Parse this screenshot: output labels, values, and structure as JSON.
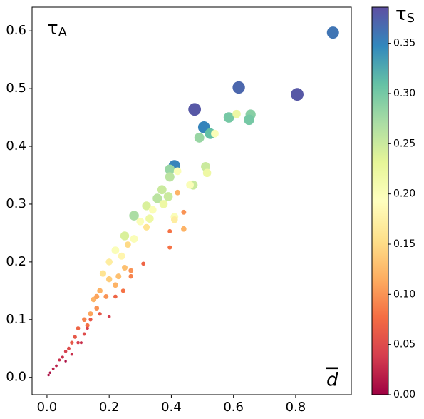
{
  "chart_data": {
    "type": "scatter",
    "annotation": {
      "text": "τ",
      "subscript": "A"
    },
    "x_label": "d",
    "colorbar_label": {
      "text": "τ",
      "subscript": "S"
    },
    "colormap": "Spectral",
    "x": [
      0.92,
      0.617,
      0.805,
      0.475,
      0.505,
      0.525,
      0.49,
      0.585,
      0.655,
      0.65,
      0.61,
      0.54,
      0.41,
      0.395,
      0.395,
      0.42,
      0.51,
      0.515,
      0.47,
      0.46,
      0.42,
      0.37,
      0.355,
      0.39,
      0.375,
      0.32,
      0.34,
      0.28,
      0.41,
      0.41,
      0.44,
      0.44,
      0.395,
      0.395,
      0.3,
      0.32,
      0.33,
      0.25,
      0.28,
      0.26,
      0.22,
      0.24,
      0.2,
      0.25,
      0.27,
      0.31,
      0.27,
      0.23,
      0.18,
      0.2,
      0.22,
      0.245,
      0.17,
      0.19,
      0.22,
      0.15,
      0.16,
      0.17,
      0.14,
      0.2,
      0.12,
      0.13,
      0.1,
      0.12,
      0.09,
      0.08,
      0.1,
      0.07,
      0.06,
      0.08,
      0.05,
      0.04,
      0.03,
      0.02,
      0.01,
      0.005,
      0.06,
      0.11,
      0.13,
      0.14,
      0.16
    ],
    "y": [
      0.597,
      0.502,
      0.49,
      0.464,
      0.433,
      0.422,
      0.415,
      0.45,
      0.455,
      0.446,
      0.456,
      0.422,
      0.366,
      0.36,
      0.347,
      0.357,
      0.365,
      0.354,
      0.333,
      0.333,
      0.32,
      0.325,
      0.31,
      0.313,
      0.3,
      0.297,
      0.29,
      0.28,
      0.278,
      0.273,
      0.286,
      0.257,
      0.253,
      0.225,
      0.27,
      0.26,
      0.275,
      0.245,
      0.24,
      0.23,
      0.22,
      0.21,
      0.2,
      0.19,
      0.185,
      0.197,
      0.175,
      0.175,
      0.18,
      0.17,
      0.16,
      0.15,
      0.15,
      0.14,
      0.14,
      0.135,
      0.12,
      0.11,
      0.11,
      0.105,
      0.1,
      0.09,
      0.085,
      0.075,
      0.07,
      0.06,
      0.06,
      0.05,
      0.045,
      0.04,
      0.035,
      0.03,
      0.02,
      0.015,
      0.008,
      0.004,
      0.028,
      0.06,
      0.085,
      0.1,
      0.14
    ],
    "c": [
      0.36,
      0.37,
      0.38,
      0.38,
      0.35,
      0.31,
      0.28,
      0.3,
      0.29,
      0.3,
      0.22,
      0.2,
      0.35,
      0.28,
      0.26,
      0.2,
      0.25,
      0.22,
      0.25,
      0.2,
      0.12,
      0.25,
      0.26,
      0.25,
      0.22,
      0.24,
      0.2,
      0.27,
      0.2,
      0.17,
      0.1,
      0.12,
      0.08,
      0.08,
      0.2,
      0.16,
      0.22,
      0.24,
      0.2,
      0.15,
      0.2,
      0.18,
      0.17,
      0.13,
      0.1,
      0.07,
      0.09,
      0.13,
      0.16,
      0.14,
      0.12,
      0.08,
      0.12,
      0.1,
      0.07,
      0.12,
      0.1,
      0.06,
      0.11,
      0.04,
      0.09,
      0.08,
      0.07,
      0.05,
      0.06,
      0.06,
      0.04,
      0.05,
      0.04,
      0.03,
      0.03,
      0.03,
      0.02,
      0.02,
      0.01,
      0.01,
      0.01,
      0.03,
      0.04,
      0.06,
      0.11
    ],
    "xlim": [
      -0.048,
      0.979
    ],
    "ylim": [
      -0.03,
      0.641
    ],
    "clim": [
      0,
      0.386
    ],
    "xticks": [
      {
        "value": 0,
        "label": "0.0"
      },
      0.2,
      0.4,
      0.6,
      0.8
    ],
    "yticks": [
      {
        "value": 0,
        "label": "0.0"
      },
      0.1,
      0.2,
      0.3,
      0.4,
      0.5,
      0.6
    ],
    "cticks": [
      {
        "value": 0,
        "label": "0.00"
      },
      0.05,
      {
        "value": 0.1,
        "label": "0.10"
      },
      0.15,
      {
        "value": 0.2,
        "label": "0.20"
      },
      0.25,
      {
        "value": 0.3,
        "label": "0.30"
      },
      0.35
    ]
  }
}
